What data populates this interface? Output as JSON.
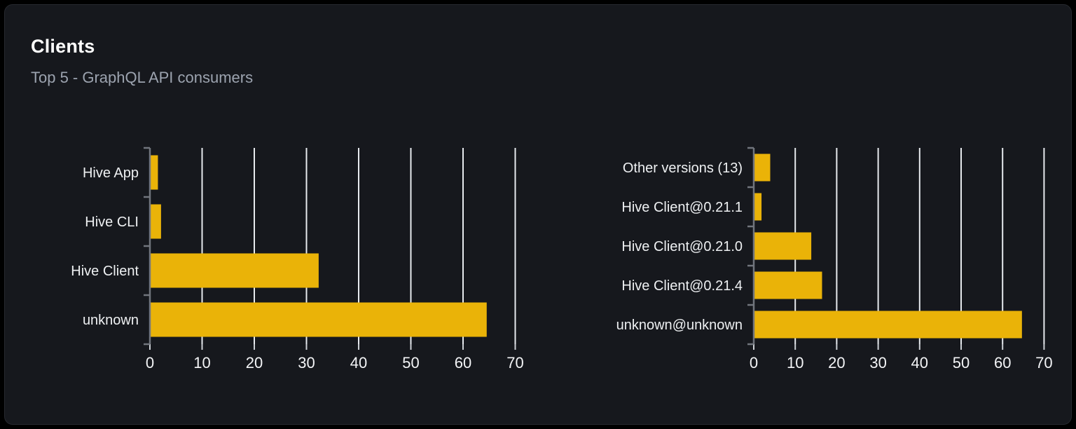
{
  "panel": {
    "title": "Clients",
    "subtitle": "Top 5 - GraphQL API consumers"
  },
  "colors": {
    "page_bg": "#000000",
    "card_bg": "#16181d",
    "card_border": "#26292f",
    "bar": "#eab308",
    "grid": "#e7eaee",
    "axis": "#71757d",
    "tick": "#cdd1d6",
    "tick_label": "#f3f4f6",
    "category_label": "#eef0f2",
    "title": "#ffffff",
    "subtitle": "#9ca3af"
  },
  "chart_data": [
    {
      "type": "bar",
      "orientation": "horizontal",
      "categories": [
        "Hive App",
        "Hive CLI",
        "Hive Client",
        "unknown"
      ],
      "values": [
        1.4,
        2,
        32.2,
        64.4
      ],
      "xlim": [
        0,
        70
      ],
      "xticks": [
        0,
        10,
        20,
        30,
        40,
        50,
        60,
        70
      ],
      "grid": true,
      "legend": false,
      "bar_color": "#eab308"
    },
    {
      "type": "bar",
      "orientation": "horizontal",
      "categories": [
        "Other versions (13)",
        "Hive Client@0.21.1",
        "Hive Client@0.21.0",
        "Hive Client@0.21.4",
        "unknown@unknown"
      ],
      "values": [
        3.8,
        1.7,
        13.7,
        16.3,
        64.5
      ],
      "xlim": [
        0,
        70
      ],
      "xticks": [
        0,
        10,
        20,
        30,
        40,
        50,
        60,
        70
      ],
      "grid": true,
      "legend": false,
      "bar_color": "#eab308"
    }
  ]
}
